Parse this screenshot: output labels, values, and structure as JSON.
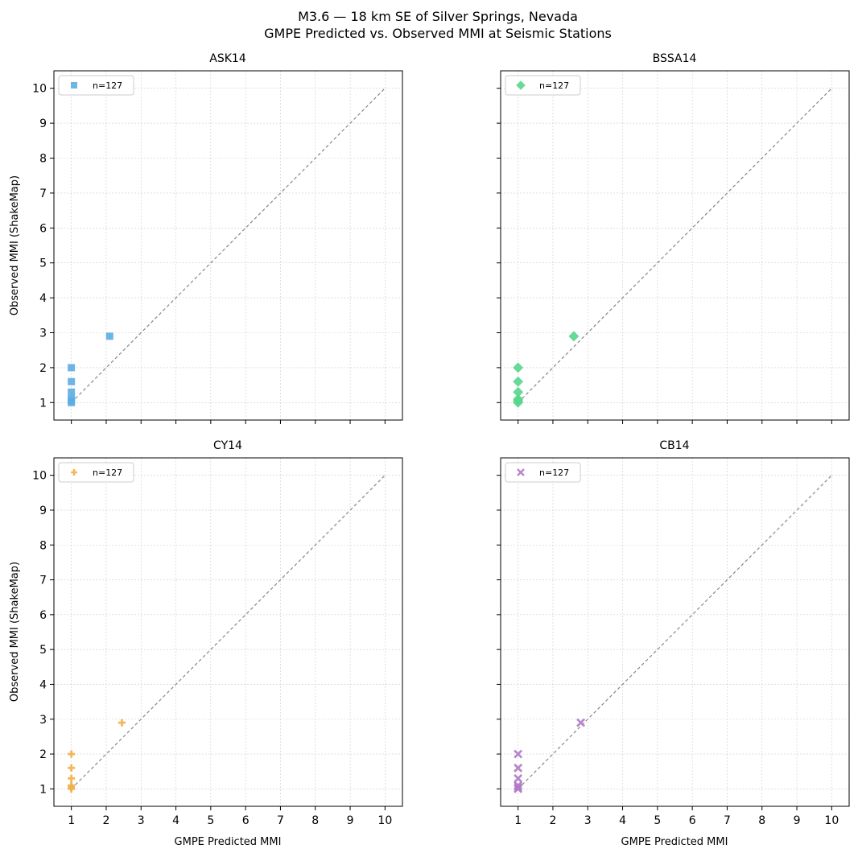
{
  "figure": {
    "title_line1": "M3.6 — 18 km SE of Silver Springs, Nevada",
    "title_line2": "GMPE Predicted vs. Observed MMI at Seismic Stations"
  },
  "chart_data": [
    {
      "type": "scatter",
      "title": "ASK14",
      "xlabel": "",
      "ylabel": "Observed MMI (ShakeMap)",
      "xlim": [
        0.5,
        10.5
      ],
      "ylim": [
        0.5,
        10.5
      ],
      "xticks": [
        1,
        2,
        3,
        4,
        5,
        6,
        7,
        8,
        9,
        10
      ],
      "yticks": [
        1,
        2,
        3,
        4,
        5,
        6,
        7,
        8,
        9,
        10
      ],
      "grid": true,
      "legend_position": "top-left",
      "reference_line": {
        "x": [
          1,
          10
        ],
        "y": [
          1,
          10
        ],
        "style": "dashed",
        "color": "#888888"
      },
      "series": [
        {
          "name": "n=127",
          "marker": "square",
          "color": "#5DADE2",
          "points": [
            [
              1.0,
              1.0
            ],
            [
              1.0,
              1.05
            ],
            [
              1.0,
              1.1
            ],
            [
              1.0,
              1.3
            ],
            [
              1.0,
              1.6
            ],
            [
              1.0,
              2.0
            ],
            [
              2.1,
              2.9
            ]
          ]
        }
      ]
    },
    {
      "type": "scatter",
      "title": "BSSA14",
      "xlabel": "",
      "ylabel": "",
      "xlim": [
        0.5,
        10.5
      ],
      "ylim": [
        0.5,
        10.5
      ],
      "xticks": [
        1,
        2,
        3,
        4,
        5,
        6,
        7,
        8,
        9,
        10
      ],
      "yticks": [
        1,
        2,
        3,
        4,
        5,
        6,
        7,
        8,
        9,
        10
      ],
      "grid": true,
      "legend_position": "top-left",
      "reference_line": {
        "x": [
          1,
          10
        ],
        "y": [
          1,
          10
        ],
        "style": "dashed",
        "color": "#888888"
      },
      "series": [
        {
          "name": "n=127",
          "marker": "diamond",
          "color": "#58D68D",
          "points": [
            [
              1.0,
              1.0
            ],
            [
              1.0,
              1.05
            ],
            [
              1.0,
              1.1
            ],
            [
              1.0,
              1.3
            ],
            [
              1.0,
              1.6
            ],
            [
              1.0,
              2.0
            ],
            [
              2.6,
              2.9
            ]
          ]
        }
      ]
    },
    {
      "type": "scatter",
      "title": "CY14",
      "xlabel": "GMPE Predicted MMI",
      "ylabel": "Observed MMI (ShakeMap)",
      "xlim": [
        0.5,
        10.5
      ],
      "ylim": [
        0.5,
        10.5
      ],
      "xticks": [
        1,
        2,
        3,
        4,
        5,
        6,
        7,
        8,
        9,
        10
      ],
      "yticks": [
        1,
        2,
        3,
        4,
        5,
        6,
        7,
        8,
        9,
        10
      ],
      "grid": true,
      "legend_position": "top-left",
      "reference_line": {
        "x": [
          1,
          10
        ],
        "y": [
          1,
          10
        ],
        "style": "dashed",
        "color": "#888888"
      },
      "series": [
        {
          "name": "n=127",
          "marker": "plus",
          "color": "#F0B04A",
          "points": [
            [
              1.0,
              1.0
            ],
            [
              1.0,
              1.05
            ],
            [
              1.0,
              1.1
            ],
            [
              1.0,
              1.3
            ],
            [
              1.0,
              1.6
            ],
            [
              1.0,
              2.0
            ],
            [
              2.45,
              2.9
            ]
          ]
        }
      ]
    },
    {
      "type": "scatter",
      "title": "CB14",
      "xlabel": "GMPE Predicted MMI",
      "ylabel": "",
      "xlim": [
        0.5,
        10.5
      ],
      "ylim": [
        0.5,
        10.5
      ],
      "xticks": [
        1,
        2,
        3,
        4,
        5,
        6,
        7,
        8,
        9,
        10
      ],
      "yticks": [
        1,
        2,
        3,
        4,
        5,
        6,
        7,
        8,
        9,
        10
      ],
      "grid": true,
      "legend_position": "top-left",
      "reference_line": {
        "x": [
          1,
          10
        ],
        "y": [
          1,
          10
        ],
        "style": "dashed",
        "color": "#888888"
      },
      "series": [
        {
          "name": "n=127",
          "marker": "x",
          "color": "#AF7AC5",
          "points": [
            [
              1.0,
              1.0
            ],
            [
              1.0,
              1.05
            ],
            [
              1.0,
              1.1
            ],
            [
              1.0,
              1.3
            ],
            [
              1.0,
              1.6
            ],
            [
              1.0,
              2.0
            ],
            [
              2.8,
              2.9
            ]
          ]
        }
      ]
    }
  ]
}
